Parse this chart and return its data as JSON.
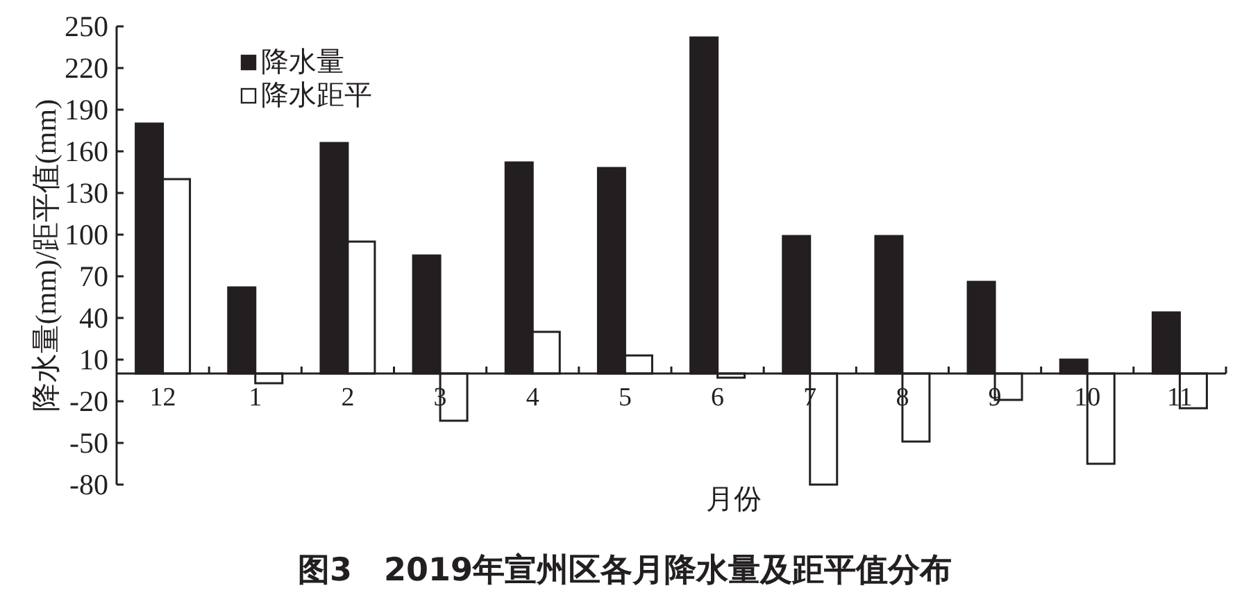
{
  "chart_data": {
    "type": "bar",
    "title": "图3　2019年宣州区各月降水量及距平值分布",
    "xlabel": "月份",
    "ylabel": "降水量(mm)/距平值(mm)",
    "categories": [
      "12",
      "1",
      "2",
      "3",
      "4",
      "5",
      "6",
      "7",
      "8",
      "9",
      "10",
      "11"
    ],
    "series": [
      {
        "name": "降水量",
        "color": "#231f20",
        "values": [
          180,
          62,
          166,
          85,
          152,
          148,
          242,
          99,
          99,
          66,
          10,
          44
        ]
      },
      {
        "name": "降水距平",
        "color": "#ffffff",
        "values": [
          140,
          -7,
          95,
          -34,
          30,
          13,
          -3,
          -80,
          -49,
          -19,
          -65,
          -25
        ]
      }
    ],
    "ylim": [
      -80,
      250
    ],
    "yticks": [
      -80,
      -50,
      -20,
      10,
      40,
      70,
      100,
      130,
      160,
      190,
      220,
      250
    ],
    "legend": "top left"
  }
}
